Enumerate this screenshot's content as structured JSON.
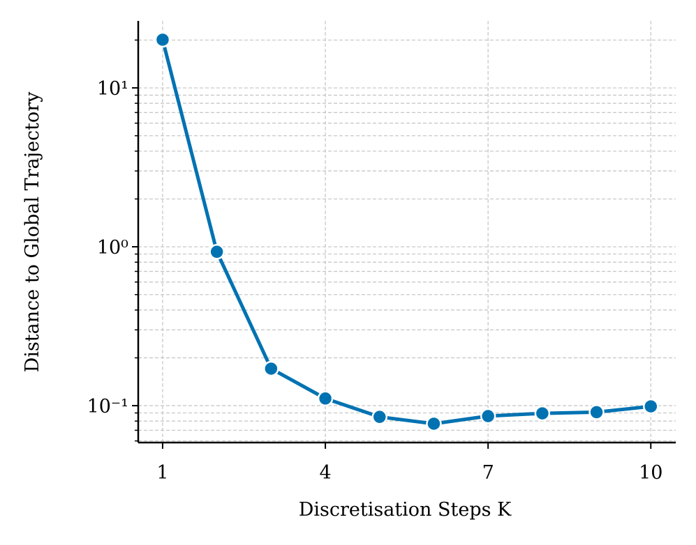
{
  "chart_data": {
    "type": "line",
    "xlabel": "Discretisation Steps K",
    "ylabel": "Distance to Global Trajectory",
    "x": [
      1,
      2,
      3,
      4,
      5,
      6,
      7,
      8,
      9,
      10
    ],
    "series": [
      {
        "name": "Distance",
        "color": "#0072b2",
        "values": [
          20.1,
          0.93,
          0.171,
          0.111,
          0.085,
          0.077,
          0.086,
          0.0895,
          0.091,
          0.099
        ]
      }
    ],
    "xlim": [
      0.55,
      10.46
    ],
    "xticks": [
      1,
      4,
      7,
      10
    ],
    "ylim": [
      0.0586,
      26.4
    ],
    "ylog": true,
    "yticks": [
      {
        "value": 0.1,
        "label": "10⁻¹"
      },
      {
        "value": 1,
        "label": "10⁰"
      },
      {
        "value": 10,
        "label": "10¹"
      }
    ],
    "y_minor_ticks": [
      0.06,
      0.07,
      0.08,
      0.09,
      0.2,
      0.3,
      0.4,
      0.5,
      0.6,
      0.7,
      0.8,
      0.9,
      2,
      3,
      4,
      5,
      6,
      7,
      8,
      9,
      20
    ],
    "grid": true
  }
}
